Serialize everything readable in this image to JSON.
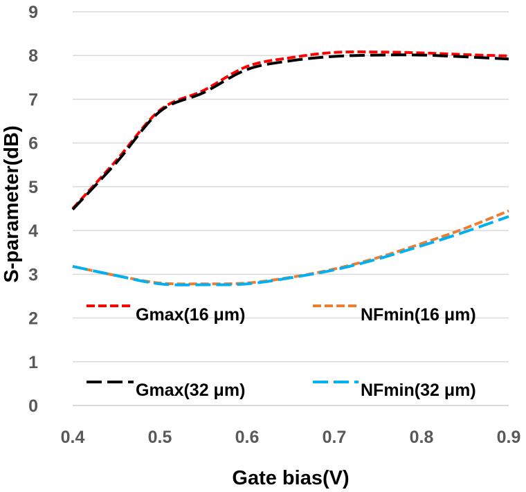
{
  "chart_data": {
    "type": "line",
    "title": "",
    "xlabel": "Gate bias(V)",
    "ylabel": "S-parameter(dB)",
    "xlim": [
      0.4,
      0.9
    ],
    "ylim": [
      0,
      9
    ],
    "x_ticks": [
      "0.4",
      "0.5",
      "0.6",
      "0.7",
      "0.8",
      "0.9"
    ],
    "y_ticks": [
      "0",
      "1",
      "2",
      "3",
      "4",
      "5",
      "6",
      "7",
      "8",
      "9"
    ],
    "grid": "horizontal",
    "legend_position": "lower-center",
    "series": [
      {
        "name": "Gmax(16 μm)",
        "color": "#ff0000",
        "dash": "short",
        "x": [
          0.4,
          0.45,
          0.5,
          0.55,
          0.6,
          0.65,
          0.7,
          0.75,
          0.8,
          0.85,
          0.9
        ],
        "y": [
          4.5,
          5.6,
          6.75,
          7.2,
          7.75,
          7.95,
          8.07,
          8.08,
          8.06,
          8.02,
          7.99
        ]
      },
      {
        "name": "NFmin(16 μm)",
        "color": "#ed7d31",
        "dash": "short",
        "x": [
          0.4,
          0.45,
          0.5,
          0.55,
          0.6,
          0.65,
          0.7,
          0.75,
          0.8,
          0.85,
          0.9
        ],
        "y": [
          3.18,
          2.97,
          2.8,
          2.78,
          2.8,
          2.93,
          3.12,
          3.38,
          3.7,
          4.05,
          4.45
        ]
      },
      {
        "name": "Gmax(32 μm)",
        "color": "#000000",
        "dash": "long",
        "x": [
          0.4,
          0.45,
          0.5,
          0.55,
          0.6,
          0.65,
          0.7,
          0.75,
          0.8,
          0.85,
          0.9
        ],
        "y": [
          4.48,
          5.55,
          6.72,
          7.15,
          7.68,
          7.88,
          7.98,
          8.01,
          8.01,
          7.97,
          7.92
        ]
      },
      {
        "name": "NFmin(32 μm)",
        "color": "#00b0f0",
        "dash": "long",
        "x": [
          0.4,
          0.45,
          0.5,
          0.55,
          0.6,
          0.65,
          0.7,
          0.75,
          0.8,
          0.85,
          0.9
        ],
        "y": [
          3.18,
          2.97,
          2.78,
          2.76,
          2.78,
          2.92,
          3.1,
          3.35,
          3.65,
          3.97,
          4.32
        ]
      }
    ]
  }
}
